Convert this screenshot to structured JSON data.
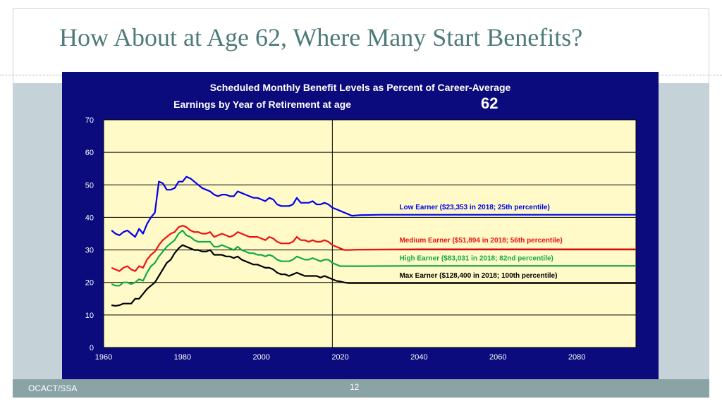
{
  "slide": {
    "title": "How About at Age 62, Where Many Start Benefits?",
    "footer_left": "OCACT/SSA",
    "page_number": "12"
  },
  "colors": {
    "title": "#4f7a7a",
    "panel": "#0b0b7e",
    "plot_bg": "#fffac8",
    "low": "#0000ee",
    "medium": "#ee1111",
    "high": "#11aa44",
    "max": "#000000"
  },
  "chart_data": {
    "type": "line",
    "title_line1": "Scheduled Monthly Benefit Levels as Percent of Career-Average",
    "title_line2": "Earnings by Year of Retirement at age",
    "title_age": "62",
    "xlim": [
      1960,
      2095
    ],
    "ylim": [
      0,
      70
    ],
    "x_ticks": [
      1960,
      1980,
      2000,
      2020,
      2040,
      2060,
      2080
    ],
    "y_ticks": [
      0,
      10,
      20,
      30,
      40,
      50,
      60,
      70
    ],
    "vertical_reference_x": 2018,
    "grid": "horizontal",
    "series": [
      {
        "name": "Low Earner ($23,353 in 2018; 25th percentile)",
        "points": [
          [
            1962,
            36
          ],
          [
            1963,
            35
          ],
          [
            1964,
            34.5
          ],
          [
            1965,
            35.5
          ],
          [
            1966,
            36
          ],
          [
            1967,
            35
          ],
          [
            1968,
            34
          ],
          [
            1969,
            36.5
          ],
          [
            1970,
            35
          ],
          [
            1971,
            38
          ],
          [
            1972,
            40
          ],
          [
            1973,
            41.5
          ],
          [
            1974,
            51
          ],
          [
            1975,
            50.5
          ],
          [
            1976,
            48.5
          ],
          [
            1977,
            48.5
          ],
          [
            1978,
            49
          ],
          [
            1979,
            51
          ],
          [
            1980,
            51
          ],
          [
            1981,
            52.5
          ],
          [
            1982,
            52
          ],
          [
            1983,
            51
          ],
          [
            1984,
            50
          ],
          [
            1985,
            49
          ],
          [
            1986,
            48.5
          ],
          [
            1987,
            48
          ],
          [
            1988,
            47
          ],
          [
            1989,
            46.5
          ],
          [
            1990,
            47
          ],
          [
            1991,
            47
          ],
          [
            1992,
            46.5
          ],
          [
            1993,
            46.5
          ],
          [
            1994,
            48
          ],
          [
            1995,
            47.5
          ],
          [
            1996,
            47
          ],
          [
            1997,
            46.5
          ],
          [
            1998,
            46
          ],
          [
            1999,
            46
          ],
          [
            2000,
            45.5
          ],
          [
            2001,
            45
          ],
          [
            2002,
            46
          ],
          [
            2003,
            45.5
          ],
          [
            2004,
            44
          ],
          [
            2005,
            43.5
          ],
          [
            2006,
            43.5
          ],
          [
            2007,
            43.5
          ],
          [
            2008,
            44
          ],
          [
            2009,
            46
          ],
          [
            2010,
            44.5
          ],
          [
            2011,
            44.5
          ],
          [
            2012,
            44.5
          ],
          [
            2013,
            45
          ],
          [
            2014,
            44
          ],
          [
            2015,
            44
          ],
          [
            2016,
            44.5
          ],
          [
            2017,
            44
          ],
          [
            2018,
            43
          ],
          [
            2019,
            42.5
          ],
          [
            2020,
            42
          ],
          [
            2021,
            41.5
          ],
          [
            2022,
            41
          ],
          [
            2023,
            40.5
          ],
          [
            2025,
            40.7
          ],
          [
            2030,
            40.8
          ],
          [
            2040,
            40.8
          ],
          [
            2060,
            40.8
          ],
          [
            2080,
            40.8
          ],
          [
            2095,
            40.8
          ]
        ]
      },
      {
        "name": "Medium Earner ($51,894 in 2018; 56th percentile)",
        "points": [
          [
            1962,
            24.5
          ],
          [
            1963,
            24
          ],
          [
            1964,
            23.5
          ],
          [
            1965,
            24.5
          ],
          [
            1966,
            25
          ],
          [
            1967,
            24
          ],
          [
            1968,
            23.5
          ],
          [
            1969,
            25
          ],
          [
            1970,
            24.5
          ],
          [
            1971,
            27
          ],
          [
            1972,
            28.5
          ],
          [
            1973,
            29.5
          ],
          [
            1974,
            31.5
          ],
          [
            1975,
            33
          ],
          [
            1976,
            34
          ],
          [
            1977,
            35
          ],
          [
            1978,
            35.5
          ],
          [
            1979,
            37
          ],
          [
            1980,
            37.5
          ],
          [
            1981,
            37
          ],
          [
            1982,
            36
          ],
          [
            1983,
            35.5
          ],
          [
            1984,
            35.5
          ],
          [
            1985,
            35
          ],
          [
            1986,
            35
          ],
          [
            1987,
            35.5
          ],
          [
            1988,
            34
          ],
          [
            1989,
            34.5
          ],
          [
            1990,
            35
          ],
          [
            1991,
            34.5
          ],
          [
            1992,
            34
          ],
          [
            1993,
            34.5
          ],
          [
            1994,
            35.5
          ],
          [
            1995,
            35
          ],
          [
            1996,
            34.5
          ],
          [
            1997,
            34
          ],
          [
            1998,
            34
          ],
          [
            1999,
            34
          ],
          [
            2000,
            33.5
          ],
          [
            2001,
            33
          ],
          [
            2002,
            34
          ],
          [
            2003,
            33.5
          ],
          [
            2004,
            32.5
          ],
          [
            2005,
            32
          ],
          [
            2006,
            32
          ],
          [
            2007,
            32
          ],
          [
            2008,
            32.5
          ],
          [
            2009,
            34
          ],
          [
            2010,
            33
          ],
          [
            2011,
            33
          ],
          [
            2012,
            32.5
          ],
          [
            2013,
            33
          ],
          [
            2014,
            32.5
          ],
          [
            2015,
            32.5
          ],
          [
            2016,
            33
          ],
          [
            2017,
            32.5
          ],
          [
            2018,
            31.5
          ],
          [
            2019,
            31
          ],
          [
            2020,
            30.5
          ],
          [
            2021,
            30
          ],
          [
            2022,
            30
          ],
          [
            2025,
            30.1
          ],
          [
            2040,
            30.2
          ],
          [
            2060,
            30.2
          ],
          [
            2080,
            30.2
          ],
          [
            2095,
            30.2
          ]
        ]
      },
      {
        "name": "High Earner ($83,031 in 2018; 82nd percentile)",
        "points": [
          [
            1962,
            19.5
          ],
          [
            1963,
            19
          ],
          [
            1964,
            19
          ],
          [
            1965,
            20
          ],
          [
            1966,
            20
          ],
          [
            1967,
            19.5
          ],
          [
            1968,
            20
          ],
          [
            1969,
            21
          ],
          [
            1970,
            20.5
          ],
          [
            1971,
            23
          ],
          [
            1972,
            25
          ],
          [
            1973,
            26
          ],
          [
            1974,
            28
          ],
          [
            1975,
            29.5
          ],
          [
            1976,
            31
          ],
          [
            1977,
            32
          ],
          [
            1978,
            33
          ],
          [
            1979,
            35
          ],
          [
            1980,
            36
          ],
          [
            1981,
            34.5
          ],
          [
            1982,
            34
          ],
          [
            1983,
            33
          ],
          [
            1984,
            32.5
          ],
          [
            1985,
            32.5
          ],
          [
            1986,
            32.5
          ],
          [
            1987,
            32.5
          ],
          [
            1988,
            31
          ],
          [
            1989,
            31
          ],
          [
            1990,
            31.5
          ],
          [
            1991,
            31
          ],
          [
            1992,
            30.5
          ],
          [
            1993,
            30
          ],
          [
            1994,
            31
          ],
          [
            1995,
            30
          ],
          [
            1996,
            29.5
          ],
          [
            1997,
            29
          ],
          [
            1998,
            29
          ],
          [
            1999,
            28.5
          ],
          [
            2000,
            28.5
          ],
          [
            2001,
            28
          ],
          [
            2002,
            28.5
          ],
          [
            2003,
            28
          ],
          [
            2004,
            27
          ],
          [
            2005,
            26.5
          ],
          [
            2006,
            26.5
          ],
          [
            2007,
            26.5
          ],
          [
            2008,
            27
          ],
          [
            2009,
            28
          ],
          [
            2010,
            27.5
          ],
          [
            2011,
            27
          ],
          [
            2012,
            27
          ],
          [
            2013,
            27.5
          ],
          [
            2014,
            27
          ],
          [
            2015,
            26.5
          ],
          [
            2016,
            27
          ],
          [
            2017,
            27
          ],
          [
            2018,
            26
          ],
          [
            2019,
            25.5
          ],
          [
            2020,
            25
          ],
          [
            2021,
            25
          ],
          [
            2025,
            25
          ],
          [
            2040,
            25.1
          ],
          [
            2060,
            25.1
          ],
          [
            2080,
            25.1
          ],
          [
            2095,
            25.1
          ]
        ]
      },
      {
        "name": "Max Earner ($128,400 in 2018; 100th percentile)",
        "points": [
          [
            1962,
            13
          ],
          [
            1963,
            12.8
          ],
          [
            1964,
            13
          ],
          [
            1965,
            13.5
          ],
          [
            1966,
            13.5
          ],
          [
            1967,
            13.5
          ],
          [
            1968,
            15
          ],
          [
            1969,
            15
          ],
          [
            1970,
            16.5
          ],
          [
            1971,
            18
          ],
          [
            1972,
            19
          ],
          [
            1973,
            20
          ],
          [
            1974,
            22
          ],
          [
            1975,
            24
          ],
          [
            1976,
            26
          ],
          [
            1977,
            27
          ],
          [
            1978,
            29
          ],
          [
            1979,
            30.5
          ],
          [
            1980,
            31.5
          ],
          [
            1981,
            31
          ],
          [
            1982,
            30.5
          ],
          [
            1983,
            30
          ],
          [
            1984,
            30
          ],
          [
            1985,
            29.5
          ],
          [
            1986,
            29.5
          ],
          [
            1987,
            30
          ],
          [
            1988,
            28.5
          ],
          [
            1989,
            28.5
          ],
          [
            1990,
            28.5
          ],
          [
            1991,
            28
          ],
          [
            1992,
            28
          ],
          [
            1993,
            27.5
          ],
          [
            1994,
            28
          ],
          [
            1995,
            27
          ],
          [
            1996,
            26.5
          ],
          [
            1997,
            26
          ],
          [
            1998,
            25.5
          ],
          [
            1999,
            25.5
          ],
          [
            2000,
            25
          ],
          [
            2001,
            24.5
          ],
          [
            2002,
            24.5
          ],
          [
            2003,
            24
          ],
          [
            2004,
            23
          ],
          [
            2005,
            22.5
          ],
          [
            2006,
            22.5
          ],
          [
            2007,
            22
          ],
          [
            2008,
            22.5
          ],
          [
            2009,
            23
          ],
          [
            2010,
            22.5
          ],
          [
            2011,
            22
          ],
          [
            2012,
            22
          ],
          [
            2013,
            22
          ],
          [
            2014,
            22
          ],
          [
            2015,
            21.5
          ],
          [
            2016,
            22
          ],
          [
            2017,
            21.5
          ],
          [
            2018,
            21
          ],
          [
            2019,
            20.5
          ],
          [
            2020,
            20.3
          ],
          [
            2021,
            20
          ],
          [
            2022,
            19.8
          ],
          [
            2025,
            19.8
          ],
          [
            2040,
            19.8
          ],
          [
            2060,
            19.8
          ],
          [
            2080,
            19.8
          ],
          [
            2095,
            19.8
          ]
        ]
      }
    ],
    "series_labels": [
      {
        "text": "Low Earner ($23,353 in 2018; 25th percentile)",
        "anchor_x": 2035,
        "anchor_y": 42.5,
        "color": "#0000ee"
      },
      {
        "text": "Medium Earner ($51,894 in 2018; 56th percentile)",
        "anchor_x": 2035,
        "anchor_y": 32.3,
        "color": "#ee1111"
      },
      {
        "text": "High Earner ($83,031 in 2018; 82nd percentile)",
        "anchor_x": 2035,
        "anchor_y": 26.8,
        "color": "#11aa44"
      },
      {
        "text": "Max Earner ($128,400 in 2018; 100th percentile)",
        "anchor_x": 2035,
        "anchor_y": 21.5,
        "color": "#000000"
      }
    ]
  }
}
